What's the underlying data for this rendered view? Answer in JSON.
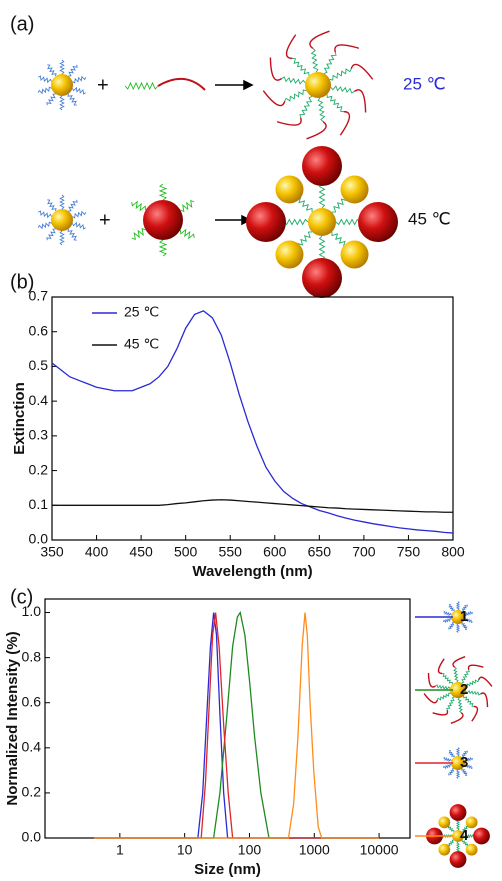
{
  "panels": [
    "(a)",
    "(b)",
    "(c)"
  ],
  "schematic": {
    "plus": [
      "+",
      "+"
    ],
    "temperatures": [
      "25 ℃",
      "45 ℃"
    ]
  },
  "chart_data": [
    {
      "type": "line",
      "xlabel": "Wavelength (nm)",
      "ylabel": "Extinction",
      "xlim": [
        350,
        800
      ],
      "xticks": [
        350,
        400,
        450,
        500,
        550,
        600,
        650,
        700,
        750,
        800
      ],
      "ylim": [
        0,
        0.7
      ],
      "yticks": [
        {
          "value": 0,
          "label": "0.0"
        },
        0.1,
        0.2,
        0.3,
        0.4,
        0.5,
        0.6,
        0.7
      ],
      "legend": "upper left",
      "x": [
        350,
        360,
        370,
        380,
        390,
        400,
        410,
        420,
        430,
        440,
        450,
        460,
        470,
        480,
        490,
        500,
        510,
        520,
        530,
        540,
        550,
        560,
        570,
        580,
        590,
        600,
        610,
        620,
        630,
        640,
        650,
        660,
        670,
        680,
        690,
        700,
        710,
        720,
        730,
        740,
        750,
        760,
        770,
        780,
        790,
        800
      ],
      "series": [
        {
          "name": "25 ℃",
          "color": "#2a2ad6",
          "values": [
            0.51,
            0.49,
            0.47,
            0.46,
            0.45,
            0.44,
            0.435,
            0.43,
            0.43,
            0.43,
            0.44,
            0.45,
            0.47,
            0.5,
            0.55,
            0.61,
            0.65,
            0.66,
            0.64,
            0.59,
            0.51,
            0.42,
            0.34,
            0.27,
            0.21,
            0.17,
            0.14,
            0.12,
            0.105,
            0.095,
            0.085,
            0.078,
            0.07,
            0.063,
            0.057,
            0.052,
            0.047,
            0.043,
            0.039,
            0.035,
            0.032,
            0.029,
            0.027,
            0.025,
            0.022,
            0.02
          ]
        },
        {
          "name": "45 ℃",
          "color": "#111111",
          "values": [
            0.1,
            0.1,
            0.1,
            0.1,
            0.1,
            0.1,
            0.1,
            0.1,
            0.1,
            0.1,
            0.1,
            0.1,
            0.1,
            0.102,
            0.105,
            0.107,
            0.11,
            0.113,
            0.115,
            0.116,
            0.115,
            0.113,
            0.111,
            0.109,
            0.107,
            0.105,
            0.103,
            0.101,
            0.099,
            0.097,
            0.095,
            0.093,
            0.092,
            0.09,
            0.089,
            0.088,
            0.087,
            0.086,
            0.085,
            0.084,
            0.083,
            0.082,
            0.081,
            0.081,
            0.08,
            0.08
          ]
        }
      ]
    },
    {
      "type": "line",
      "xlabel": "Size (nm)",
      "ylabel": "Normalized Intensity (%)",
      "log_x": true,
      "xlim": [
        0.07,
        30000
      ],
      "xticks": [
        1,
        10,
        100,
        1000,
        10000
      ],
      "ylim": [
        0,
        1.06
      ],
      "yticks": [
        {
          "value": 0,
          "label": "0.0"
        },
        0.2,
        0.4,
        0.6,
        0.8,
        {
          "value": 1,
          "label": "1.0"
        }
      ],
      "legend": "right",
      "series": [
        {
          "name": "1",
          "color": "#2a2ad6",
          "x": [
            0.4,
            16,
            19,
            22,
            25,
            28,
            31,
            35,
            40,
            46,
            10000
          ],
          "values": [
            0,
            0,
            0.2,
            0.55,
            0.85,
            1,
            0.9,
            0.55,
            0.2,
            0,
            0
          ]
        },
        {
          "name": "2",
          "color": "#1f8a1f",
          "x": [
            0.4,
            28,
            35,
            45,
            55,
            65,
            72,
            85,
            100,
            120,
            150,
            200,
            10000
          ],
          "values": [
            0,
            0,
            0.2,
            0.55,
            0.85,
            0.98,
            1,
            0.9,
            0.7,
            0.45,
            0.2,
            0,
            0
          ]
        },
        {
          "name": "3",
          "color": "#e0242a",
          "x": [
            0.4,
            18,
            21,
            24,
            27,
            30,
            34,
            40,
            47,
            55,
            10000
          ],
          "values": [
            0,
            0,
            0.25,
            0.6,
            0.9,
            1,
            0.85,
            0.5,
            0.2,
            0,
            0
          ]
        },
        {
          "name": "4",
          "color": "#ff8c1a",
          "x": [
            0.4,
            400,
            480,
            560,
            650,
            720,
            780,
            860,
            980,
            1150,
            1300,
            10000
          ],
          "values": [
            0,
            0,
            0.15,
            0.45,
            0.85,
            1,
            0.9,
            0.6,
            0.3,
            0.05,
            0,
            0
          ]
        }
      ]
    }
  ]
}
